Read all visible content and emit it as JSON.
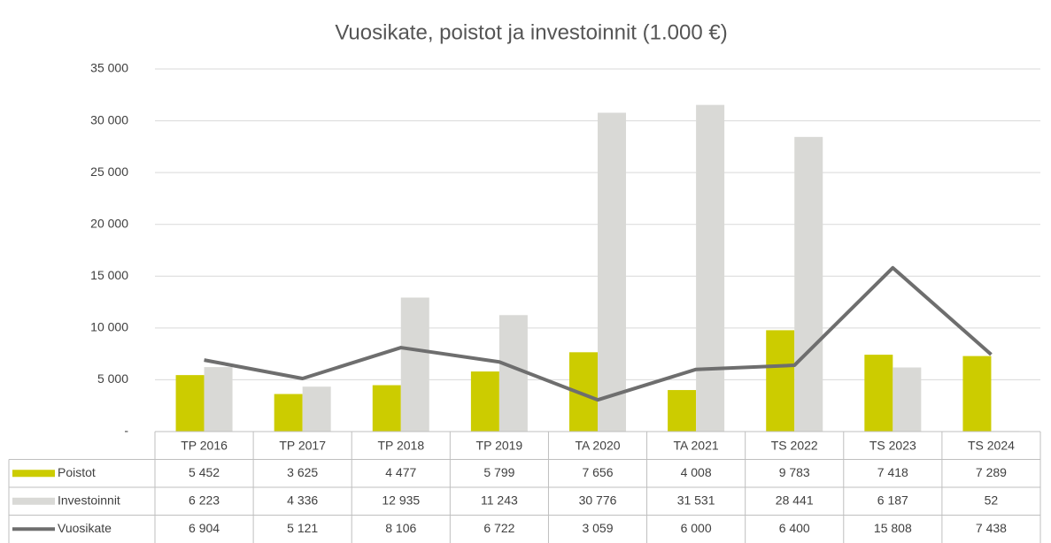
{
  "chart_data": {
    "type": "bar",
    "title": "Vuosikate, poistot ja investoinnit (1.000 €)",
    "categories": [
      "TP 2016",
      "TP 2017",
      "TP 2018",
      "TP 2019",
      "TA 2020",
      "TA 2021",
      "TS 2022",
      "TS 2023",
      "TS 2024"
    ],
    "series": [
      {
        "name": "Poistot",
        "type": "bar",
        "color": "#cccc00",
        "values": [
          5452,
          3625,
          4477,
          5799,
          7656,
          4008,
          9783,
          7418,
          7289
        ],
        "value_labels": [
          "5 452",
          "3 625",
          "4 477",
          "5 799",
          "7 656",
          "4 008",
          "9 783",
          "7 418",
          "7 289"
        ]
      },
      {
        "name": "Investoinnit",
        "type": "bar",
        "color": "#d9d9d6",
        "values": [
          6223,
          4336,
          12935,
          11243,
          30776,
          31531,
          28441,
          6187,
          52
        ],
        "value_labels": [
          "6 223",
          "4 336",
          "12 935",
          "11 243",
          "30 776",
          "31 531",
          "28 441",
          "6 187",
          "52"
        ]
      },
      {
        "name": "Vuosikate",
        "type": "line",
        "color": "#6e6e6e",
        "values": [
          6904,
          5121,
          8106,
          6722,
          3059,
          6000,
          6400,
          15808,
          7438
        ],
        "value_labels": [
          "6 904",
          "5 121",
          "8 106",
          "6 722",
          "3 059",
          "6 000",
          "6 400",
          "15 808",
          "7 438"
        ]
      }
    ],
    "ylim": [
      0,
      35000
    ],
    "yticks": [
      {
        "value": 0,
        "label": "-"
      },
      {
        "value": 5000,
        "label": "5 000"
      },
      {
        "value": 10000,
        "label": "10 000"
      },
      {
        "value": 15000,
        "label": "15 000"
      },
      {
        "value": 20000,
        "label": "20 000"
      },
      {
        "value": 25000,
        "label": "25 000"
      },
      {
        "value": 30000,
        "label": "30 000"
      },
      {
        "value": 35000,
        "label": "35 000"
      }
    ],
    "grid": true
  }
}
